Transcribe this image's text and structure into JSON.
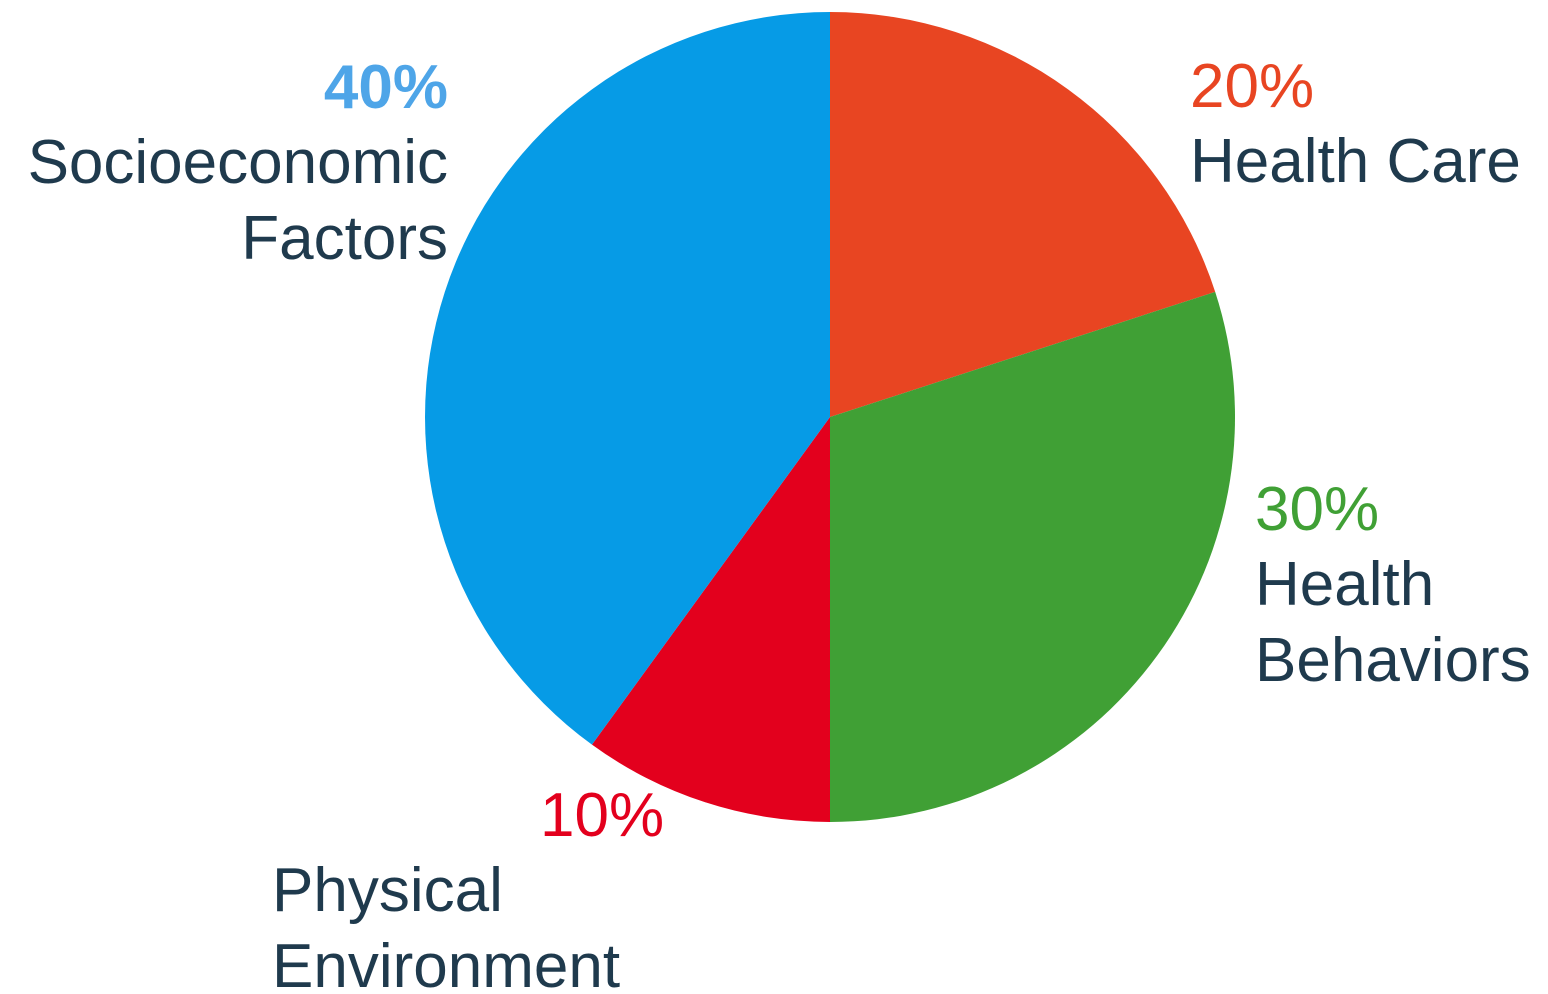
{
  "chart_data": {
    "type": "pie",
    "start_angle_deg": 0,
    "direction": "clockwise",
    "label_color": "#1f3a4d",
    "slices": [
      {
        "value": 20,
        "pct_label": "20%",
        "lines": [
          "Health Care"
        ],
        "color": "#e84522"
      },
      {
        "value": 30,
        "pct_label": "30%",
        "lines": [
          "Health",
          "Behaviors"
        ],
        "color": "#40a035"
      },
      {
        "value": 10,
        "pct_label": "10%",
        "lines": [
          "Physical",
          "Environment"
        ],
        "color": "#e3001d"
      },
      {
        "value": 40,
        "pct_label": "40%",
        "lines": [
          "Socioeconomic",
          "Factors"
        ],
        "color": "#069be6",
        "pct_color": "#4ea5e8",
        "pct_bold": true
      }
    ]
  }
}
